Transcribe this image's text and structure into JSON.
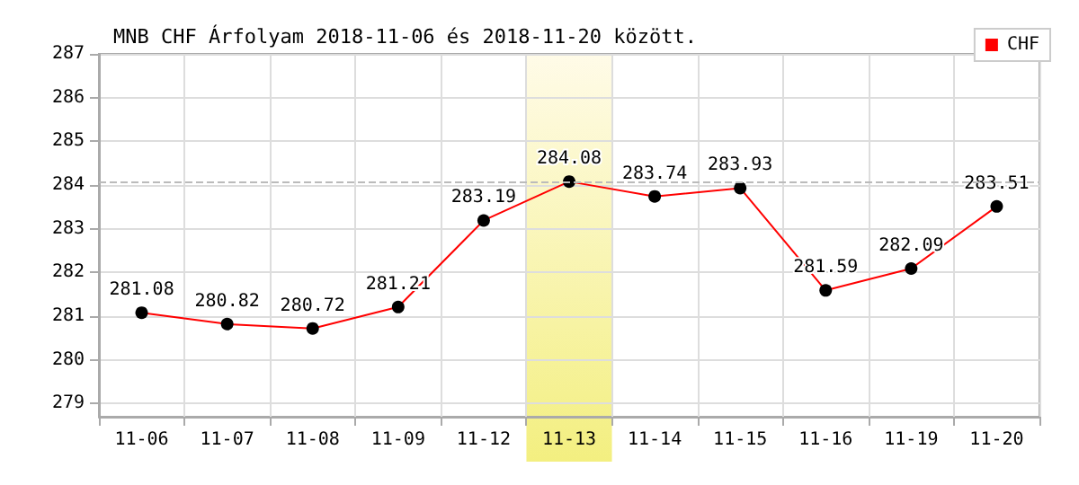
{
  "chart_data": {
    "type": "line",
    "title": "MNB CHF Árfolyam 2018-11-06 és 2018-11-20 között.",
    "categories": [
      "11-06",
      "11-07",
      "11-08",
      "11-09",
      "11-12",
      "11-13",
      "11-14",
      "11-15",
      "11-16",
      "11-19",
      "11-20"
    ],
    "series": [
      {
        "name": "CHF",
        "color": "#ff0000",
        "values": [
          281.08,
          280.82,
          280.72,
          281.21,
          283.19,
          284.08,
          283.74,
          283.93,
          281.59,
          282.09,
          283.51
        ]
      }
    ],
    "ylim": [
      278.7,
      287
    ],
    "yticks": [
      279,
      280,
      281,
      282,
      283,
      284,
      285,
      286,
      287
    ],
    "ref_lines": [
      {
        "axis": "y",
        "value": 284.08,
        "color": "#bbbbbb",
        "line_style": "dashed"
      }
    ],
    "bands": [
      {
        "axis": "x",
        "from": "11-13",
        "to": "11-13",
        "color": "#f3ef80"
      }
    ],
    "data_labels": true,
    "grid": true,
    "legend": "top right",
    "marker": "circle",
    "line_style": "solid"
  }
}
